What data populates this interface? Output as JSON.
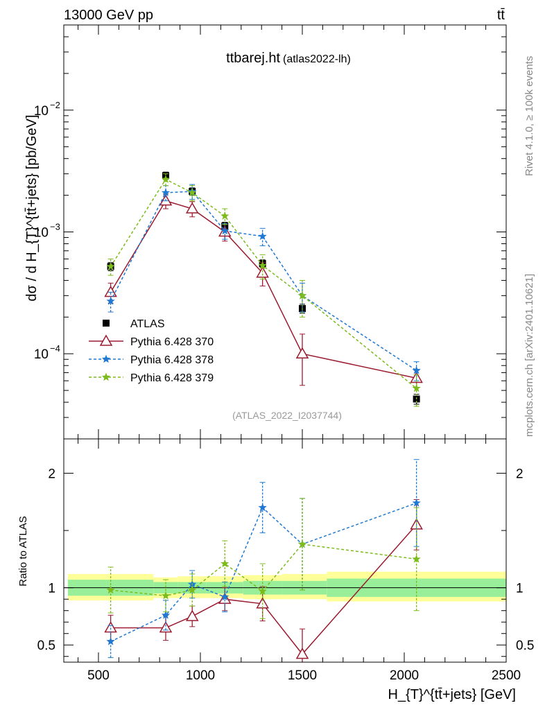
{
  "header": {
    "left": "13000 GeV pp",
    "right": "tt̄",
    "right_rotated_top": "Rivet 4.1.0, ≥ 100k events",
    "right_rotated_bottom": "mcplots.cern.ch [arXiv:2401.10621]"
  },
  "colors": {
    "atlas": "#000000",
    "p370": "#9b1b30",
    "p378": "#1f78d1",
    "p379": "#7cbb1c",
    "band_inner": "#99ee99",
    "band_outer": "#ffff99"
  },
  "chart_data": [
    {
      "type": "scatter",
      "title": "ttbarej.ht",
      "subtitle": "(atlas2022-lh)",
      "watermark": "(ATLAS_2022_I2037744)",
      "ylabel": "dσ / d H_{T}^{tt̄+jets} [pb/GeV]",
      "yscale": "log",
      "xlim": [
        330,
        2500
      ],
      "ylim": [
        2e-05,
        0.05
      ],
      "y_major_ticks": [
        {
          "value": 0.01,
          "base": "10",
          "exp": "−2"
        },
        {
          "value": 0.001,
          "base": "10",
          "exp": "−3"
        },
        {
          "value": 0.0001,
          "base": "10",
          "exp": "−4"
        }
      ],
      "legend_position": "bottom-left",
      "series": [
        {
          "name": "ATLAS",
          "key": "atlas",
          "marker": "square",
          "line": "none",
          "x": [
            560,
            830,
            960,
            1120,
            1305,
            1500,
            2060
          ],
          "y": [
            0.00052,
            0.0029,
            0.00215,
            0.00112,
            0.00055,
            0.000235,
            4.25e-05
          ],
          "err": [
            4e-05,
            0.0002,
            0.00015,
            8e-05,
            4e-05,
            2e-05,
            4e-06
          ]
        },
        {
          "name": "Pythia 6.428 370",
          "key": "p370",
          "marker": "triangle",
          "line": "solid",
          "x": [
            560,
            830,
            960,
            1120,
            1305,
            1500,
            2060
          ],
          "y": [
            0.00032,
            0.0018,
            0.00155,
            0.001,
            0.00046,
            0.0001,
            6.3e-05
          ],
          "err": [
            6e-05,
            0.00025,
            0.00022,
            0.00016,
            0.0001,
            4.5e-05,
            1e-05
          ]
        },
        {
          "name": "Pythia 6.428 378",
          "key": "p378",
          "marker": "star",
          "line": "dashed",
          "x": [
            560,
            830,
            960,
            1120,
            1305,
            1500,
            2060
          ],
          "y": [
            0.00027,
            0.0021,
            0.00215,
            0.00102,
            0.00092,
            0.0003,
            7.3e-05
          ],
          "err": [
            5e-05,
            0.0003,
            0.0003,
            0.00015,
            0.00015,
            8e-05,
            1.3e-05
          ]
        },
        {
          "name": "Pythia 6.428 379",
          "key": "p379",
          "marker": "star",
          "line": "dashed",
          "x": [
            560,
            830,
            960,
            1120,
            1305,
            1500,
            2060
          ],
          "y": [
            0.00052,
            0.0027,
            0.0021,
            0.00135,
            0.00053,
            0.0003,
            5.2e-05
          ],
          "err": [
            8e-05,
            0.0003,
            0.0003,
            0.0002,
            0.00012,
            0.0001,
            1.5e-05
          ]
        }
      ]
    },
    {
      "type": "scatter",
      "ylabel": "Ratio to ATLAS",
      "xlabel": "H_{T}^{tt̄+jets} [GeV]",
      "xlim": [
        330,
        2500
      ],
      "ylim": [
        0.35,
        2.3
      ],
      "x_ticks": [
        500,
        1000,
        1500,
        2000,
        2500
      ],
      "x_tick_labels": [
        "500",
        "1000",
        "1500",
        "2000",
        "2500"
      ],
      "y_ticks": [
        0.5,
        1,
        2
      ],
      "y_tick_labels": [
        "0.5",
        "1",
        "2"
      ],
      "bands": {
        "edges": [
          350,
          770,
          890,
          1030,
          1210,
          1400,
          1620,
          2500
        ],
        "inner_low": [
          0.93,
          0.95,
          0.95,
          0.95,
          0.94,
          0.94,
          0.92
        ],
        "inner_high": [
          1.07,
          1.05,
          1.05,
          1.05,
          1.06,
          1.06,
          1.08
        ],
        "outer_low": [
          0.89,
          0.91,
          0.91,
          0.91,
          0.9,
          0.9,
          0.88
        ],
        "outer_high": [
          1.12,
          1.09,
          1.1,
          1.1,
          1.11,
          1.12,
          1.14
        ]
      },
      "series": [
        {
          "name": "Pythia 6.428 370",
          "key": "p370",
          "marker": "triangle",
          "line": "solid",
          "x": [
            560,
            830,
            960,
            1120,
            1305,
            1500,
            2060
          ],
          "y": [
            0.65,
            0.65,
            0.75,
            0.9,
            0.86,
            0.42,
            1.55
          ],
          "err": [
            0.11,
            0.11,
            0.09,
            0.1,
            0.15,
            0.22,
            0.22
          ]
        },
        {
          "name": "Pythia 6.428 378",
          "key": "p378",
          "marker": "star",
          "line": "dashed",
          "x": [
            560,
            830,
            960,
            1120,
            1305,
            1500,
            2060
          ],
          "y": [
            0.53,
            0.76,
            1.03,
            0.92,
            1.7,
            1.38,
            1.74
          ],
          "err": [
            0.14,
            0.13,
            0.12,
            0.13,
            0.22,
            0.4,
            0.38
          ]
        },
        {
          "name": "Pythia 6.428 379",
          "key": "p379",
          "marker": "star",
          "line": "dashed",
          "x": [
            560,
            830,
            960,
            1120,
            1305,
            1500,
            2060
          ],
          "y": [
            0.98,
            0.93,
            0.98,
            1.21,
            0.97,
            1.38,
            1.25
          ],
          "err": [
            0.2,
            0.14,
            0.14,
            0.2,
            0.24,
            0.4,
            0.45
          ]
        }
      ]
    }
  ]
}
